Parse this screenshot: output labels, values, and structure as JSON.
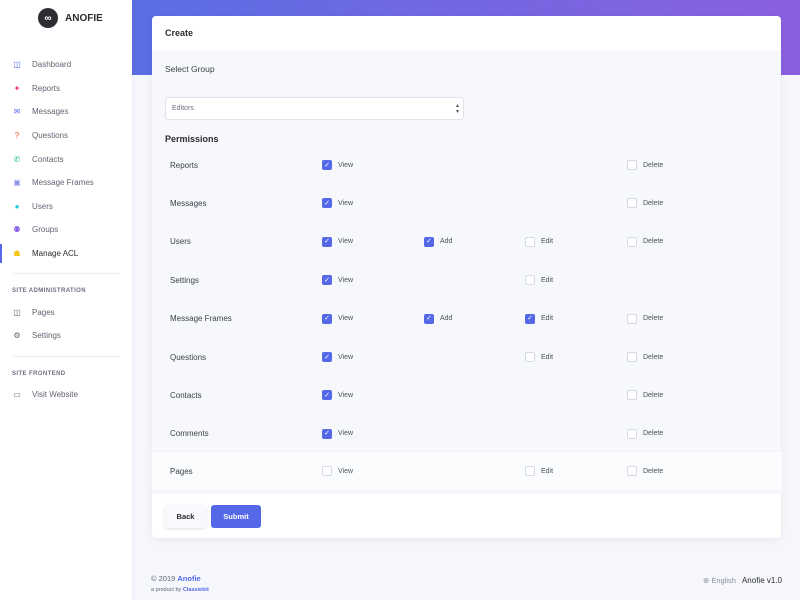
{
  "brand": {
    "name": "ANOFIE"
  },
  "sidebar": {
    "items": [
      {
        "label": "Dashboard",
        "icon": "dashboard-icon",
        "glyph": "◫",
        "color": "#5468e8"
      },
      {
        "label": "Reports",
        "icon": "gift-icon",
        "glyph": "✦",
        "color": "#f0336b"
      },
      {
        "label": "Messages",
        "icon": "envelope-icon",
        "glyph": "✉",
        "color": "#5468e8"
      },
      {
        "label": "Questions",
        "icon": "question-circle-icon",
        "glyph": "?",
        "color": "#f05a28"
      },
      {
        "label": "Contacts",
        "icon": "phone-icon",
        "glyph": "✆",
        "color": "#1fbf8f"
      },
      {
        "label": "Message Frames",
        "icon": "image-icon",
        "glyph": "▣",
        "color": "#8a94e8"
      },
      {
        "label": "Users",
        "icon": "user-icon",
        "glyph": "●",
        "color": "#27c4e4"
      },
      {
        "label": "Groups",
        "icon": "users-icon",
        "glyph": "⚉",
        "color": "#8b5ee8"
      },
      {
        "label": "Manage ACL",
        "icon": "user-shield-icon",
        "glyph": "☗",
        "color": "#f5c518",
        "active": true
      }
    ],
    "admin_title": "SITE ADMINISTRATION",
    "admin_items": [
      {
        "label": "Pages",
        "icon": "columns-icon",
        "glyph": "◫"
      },
      {
        "label": "Settings",
        "icon": "cogs-icon",
        "glyph": "⚙"
      }
    ],
    "frontend_title": "SITE FRONTEND",
    "frontend_items": [
      {
        "label": "Visit Website",
        "icon": "desktop-icon",
        "glyph": "▭"
      }
    ]
  },
  "form": {
    "title": "Create",
    "group_label": "Select Group",
    "group_value": "Editors",
    "permissions_title": "Permissions",
    "rows": [
      {
        "name": "Reports",
        "view": true,
        "delete": false
      },
      {
        "name": "Messages",
        "view": true,
        "delete": false
      },
      {
        "name": "Users",
        "view": true,
        "add": true,
        "edit": false,
        "delete": false
      },
      {
        "name": "Settings",
        "view": true,
        "edit": false
      },
      {
        "name": "Message Frames",
        "view": true,
        "add": true,
        "edit": true,
        "delete": false
      },
      {
        "name": "Questions",
        "view": true,
        "edit": false,
        "delete": false
      },
      {
        "name": "Contacts",
        "view": true,
        "delete": false
      },
      {
        "name": "Comments",
        "view": true,
        "delete": false
      },
      {
        "name": "Pages",
        "view": false,
        "edit": false,
        "delete": false
      }
    ],
    "perm_labels": {
      "view": "View",
      "add": "Add",
      "edit": "Edit",
      "delete": "Delete"
    },
    "back_label": "Back",
    "submit_label": "Submit"
  },
  "footer": {
    "copyright": "© 2019",
    "brand": "Anofie",
    "product_by": "a product by",
    "company": "Classiebit",
    "language": "English",
    "version": "Anofie v1.0"
  },
  "colors": {
    "accent": "#5468e8"
  }
}
